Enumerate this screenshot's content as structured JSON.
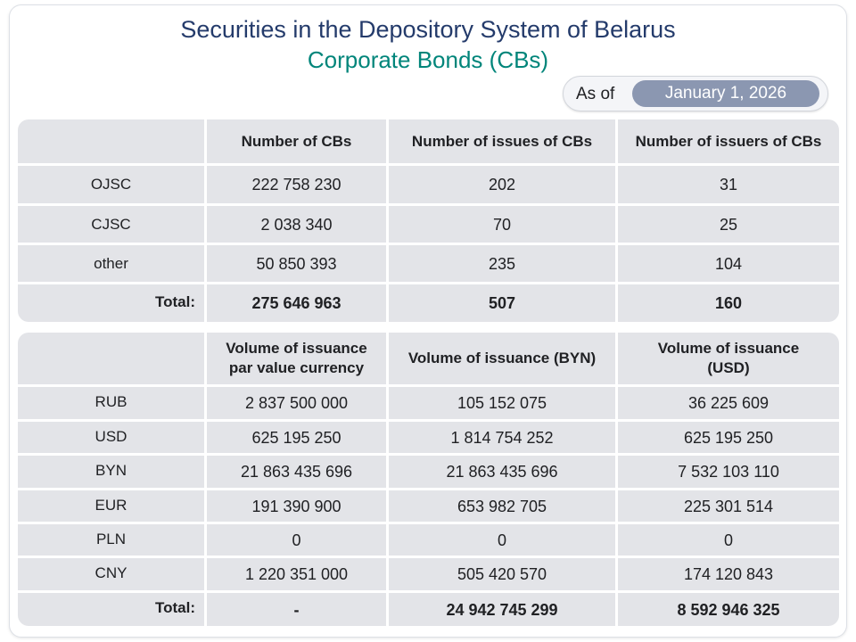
{
  "header": {
    "title": "Securities in the Depository System of Belarus",
    "subtitle": "Corporate Bonds (CBs)",
    "as_of_label": "As of",
    "as_of_date": "January 1, 2026"
  },
  "table1": {
    "columns": [
      "Number of CBs",
      "Number of issues of CBs",
      "Number of issuers of CBs"
    ],
    "rows": [
      {
        "label": "OJSC",
        "values": [
          "222 758 230",
          "202",
          "31"
        ]
      },
      {
        "label": "CJSC",
        "values": [
          "2 038 340",
          "70",
          "25"
        ]
      },
      {
        "label": "other",
        "values": [
          "50 850 393",
          "235",
          "104"
        ]
      }
    ],
    "total": {
      "label": "Total:",
      "values": [
        "275 646 963",
        "507",
        "160"
      ]
    }
  },
  "table2": {
    "columns": [
      [
        "Volume of issuance",
        "par value currency"
      ],
      [
        "Volume of issuance (BYN)"
      ],
      [
        "Volume of issuance",
        "(USD)"
      ]
    ],
    "rows": [
      {
        "label": "RUB",
        "values": [
          "2 837 500 000",
          "105 152 075",
          "36 225 609"
        ]
      },
      {
        "label": "USD",
        "values": [
          "625 195 250",
          "1 814 754 252",
          "625 195 250"
        ]
      },
      {
        "label": "BYN",
        "values": [
          "21 863 435 696",
          "21 863 435 696",
          "7 532 103 110"
        ]
      },
      {
        "label": "EUR",
        "values": [
          "191 390 900",
          "653 982 705",
          "225 301 514"
        ]
      },
      {
        "label": "PLN",
        "values": [
          "0",
          "0",
          "0"
        ]
      },
      {
        "label": "CNY",
        "values": [
          "1 220 351 000",
          "505 420 570",
          "174 120 843"
        ]
      }
    ],
    "total": {
      "label": "Total:",
      "values": [
        "-",
        "24 942 745 299",
        "8 592 946 325"
      ]
    }
  }
}
